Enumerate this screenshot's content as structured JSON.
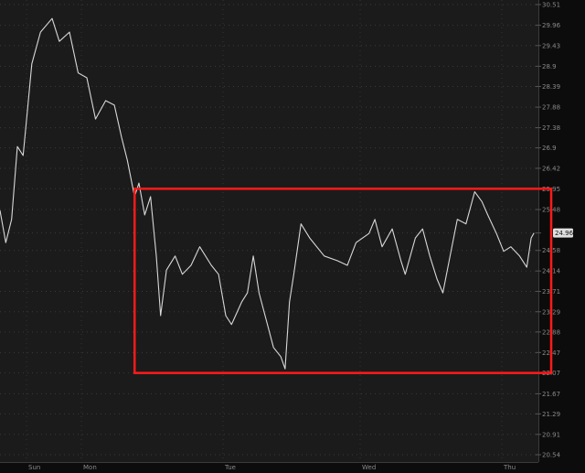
{
  "chart_data": {
    "type": "line",
    "title": "",
    "xlabel": "",
    "ylabel": "",
    "y_scale": "log",
    "ylim": [
      20.54,
      30.51
    ],
    "grid": true,
    "y_ticks": [
      "30.51",
      "29.96",
      "29.43",
      "28.9",
      "28.39",
      "27.88",
      "27.38",
      "26.9",
      "26.42",
      "25.95",
      "25.48",
      "24.96",
      "24.58",
      "24.14",
      "23.71",
      "23.29",
      "22.88",
      "22.47",
      "22.07",
      "21.67",
      "21.29",
      "20.91",
      "20.54"
    ],
    "x_ticks": [
      "Sun",
      "Mon",
      "Tue",
      "Wed",
      "Thu"
    ],
    "last_price": "24.96",
    "colors": {
      "line": "#d8d8d8",
      "highlight_box": "#ff1a1a",
      "background": "#1b1b1b",
      "axis_bg": "#0c0c0c",
      "grid": "#3a3a3a"
    },
    "series": [
      {
        "x": [
          "Sun 09:00",
          "Sun 10:00",
          "Sun 11:00",
          "Sun 12:00",
          "Sun 13:00",
          "Sun 13:45",
          "Sun 14:30",
          "Sun 16:00",
          "Sun 18:00",
          "Sun 19:15",
          "Sun 21:00",
          "Sun 22:30",
          "Mon 00:00",
          "Mon 01:30",
          "Mon 03:15",
          "Mon 04:45",
          "Mon 06:00",
          "Mon 07:00",
          "Mon 08:15",
          "Mon 09:00",
          "Mon 10:00",
          "Mon 11:00",
          "Mon 12:00",
          "Mon 12:45",
          "Mon 13:45",
          "Mon 15:15",
          "Mon 16:30",
          "Mon 18:00",
          "Mon 19:30",
          "Mon 21:30",
          "Mon 22:45",
          "Tue 00:00",
          "Tue 01:00",
          "Tue 02:45",
          "Tue 03:45",
          "Tue 04:45",
          "Tue 05:45",
          "Tue 07:00",
          "Tue 08:15",
          "Tue 09:30",
          "Tue 10:15",
          "Tue 11:00",
          "Tue 11:45",
          "Tue 13:00",
          "Tue 14:30",
          "Tue 17:00",
          "Tue 19:15",
          "Tue 21:00",
          "Tue 22:30",
          "Wed 00:45",
          "Wed 01:45",
          "Wed 03:00",
          "Wed 04:45",
          "Wed 06:15",
          "Wed 07:00",
          "Wed 08:45",
          "Wed 10:00",
          "Wed 11:15",
          "Wed 12:30",
          "Wed 13:30",
          "Wed 14:45",
          "Wed 16:00",
          "Wed 17:30",
          "Wed 19:00",
          "Wed 20:15",
          "Wed 21:15",
          "Wed 22:45",
          "Thu 00:00",
          "Thu 01:15",
          "Thu 02:45",
          "Thu 04:00",
          "Thu 04:45",
          "Thu 05:15"
        ],
        "values": [
          25.46,
          24.75,
          25.26,
          26.93,
          26.72,
          27.82,
          28.96,
          29.78,
          30.14,
          29.54,
          29.78,
          28.73,
          28.61,
          27.59,
          28.04,
          27.93,
          27.15,
          26.61,
          25.77,
          26.08,
          25.36,
          25.77,
          24.46,
          23.21,
          24.16,
          24.46,
          24.07,
          24.26,
          24.66,
          24.26,
          24.07,
          23.21,
          23.03,
          23.49,
          23.68,
          24.46,
          23.68,
          23.12,
          22.57,
          22.39,
          22.15,
          23.49,
          24.07,
          25.16,
          24.85,
          24.46,
          24.36,
          24.26,
          24.75,
          24.95,
          25.26,
          24.66,
          25.05,
          24.36,
          24.07,
          24.85,
          25.05,
          24.46,
          23.97,
          23.68,
          24.46,
          25.26,
          25.16,
          25.88,
          25.66,
          25.36,
          24.95,
          24.56,
          24.66,
          24.46,
          24.22,
          24.85,
          24.96
        ]
      }
    ],
    "annotations": [
      {
        "type": "rectangle",
        "x_start": "Mon 08:15",
        "x_end": "right-edge",
        "y_top": 25.95,
        "y_bottom": 22.07
      }
    ]
  }
}
